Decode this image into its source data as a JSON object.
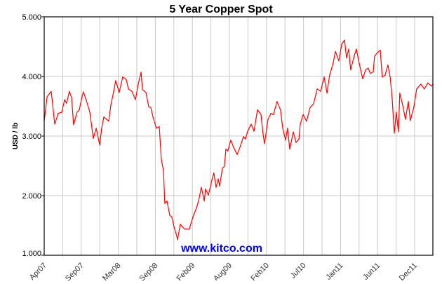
{
  "chart_data": {
    "type": "line",
    "title": "5 Year Copper Spot",
    "xlabel": "",
    "ylabel": "USD / lb",
    "watermark": "www.kitco.com",
    "xlim": [
      "2007-04-01",
      "2012-02-07"
    ],
    "ylim": [
      1,
      5
    ],
    "yticks": [
      "1.000",
      "2.000",
      "3.000",
      "4.000",
      "5.000"
    ],
    "xticks": [
      "Apr07",
      "Sep07",
      "Mar08",
      "Sep08",
      "Feb09",
      "Aug09",
      "Feb10",
      "Jul10",
      "Jan11",
      "Jun11",
      "Dec11"
    ],
    "grid": true,
    "legend": "none",
    "colors": {
      "line": "#ff0000",
      "grid": "#c8c8c8",
      "watermark": "#0000ff"
    },
    "series": [
      {
        "x": [
          "2007-04-01",
          "2007-04-14",
          "2007-05-03",
          "2007-05-19",
          "2007-06-04",
          "2007-06-20",
          "2007-07-03",
          "2007-07-12",
          "2007-07-25",
          "2007-08-04",
          "2007-08-13",
          "2007-08-29",
          "2007-09-08",
          "2007-09-21",
          "2007-09-27",
          "2007-10-10",
          "2007-10-26",
          "2007-11-11",
          "2007-11-24",
          "2007-12-10",
          "2007-12-19",
          "2007-12-29",
          "2008-01-20",
          "2008-01-30",
          "2008-02-12",
          "2008-02-21",
          "2008-03-08",
          "2008-03-24",
          "2008-04-09",
          "2008-04-19",
          "2008-05-05",
          "2008-05-21",
          "2008-06-03",
          "2008-06-16",
          "2008-06-22",
          "2008-07-08",
          "2008-07-21",
          "2008-07-30",
          "2008-08-09",
          "2008-08-25",
          "2008-09-07",
          "2008-09-16",
          "2008-09-26",
          "2008-10-02",
          "2008-10-12",
          "2008-10-25",
          "2008-11-03",
          "2008-11-13",
          "2008-11-26",
          "2008-11-29",
          "2008-12-12",
          "2008-12-31",
          "2009-01-22",
          "2009-02-07",
          "2009-02-23",
          "2009-03-05",
          "2009-03-18",
          "2009-03-31",
          "2009-04-06",
          "2009-04-19",
          "2009-05-05",
          "2009-05-14",
          "2009-05-24",
          "2009-06-03",
          "2009-06-09",
          "2009-06-22",
          "2009-07-01",
          "2009-07-08",
          "2009-07-17",
          "2009-07-30",
          "2009-08-12",
          "2009-08-28",
          "2009-09-10",
          "2009-09-26",
          "2009-10-05",
          "2009-10-15",
          "2009-10-31",
          "2009-11-13",
          "2009-11-29",
          "2009-12-15",
          "2009-12-24",
          "2009-12-31",
          "2010-01-16",
          "2010-01-29",
          "2010-02-10",
          "2010-02-26",
          "2010-03-14",
          "2010-03-24",
          "2010-04-06",
          "2010-04-15",
          "2010-04-25",
          "2010-05-11",
          "2010-05-24",
          "2010-06-06",
          "2010-06-12",
          "2010-06-25",
          "2010-07-11",
          "2010-07-27",
          "2010-08-12",
          "2010-08-28",
          "2010-09-13",
          "2010-09-29",
          "2010-10-12",
          "2010-10-24",
          "2010-11-09",
          "2010-11-19",
          "2010-12-05",
          "2010-12-18",
          "2010-12-31",
          "2011-01-09",
          "2011-01-19",
          "2011-01-28",
          "2011-02-13",
          "2011-02-23",
          "2011-03-08",
          "2011-03-24",
          "2011-04-06",
          "2011-04-18",
          "2011-04-28",
          "2011-05-11",
          "2011-05-17",
          "2011-05-30",
          "2011-06-12",
          "2011-06-21",
          "2011-07-04",
          "2011-07-17",
          "2011-07-27",
          "2011-08-05",
          "2011-08-15",
          "2011-08-24",
          "2011-09-03",
          "2011-09-09",
          "2011-09-22",
          "2011-10-05",
          "2011-10-18",
          "2011-10-27",
          "2011-11-12",
          "2011-11-25",
          "2011-12-14",
          "2011-12-30",
          "2012-01-15",
          "2012-01-31",
          "2012-02-07"
        ],
        "y": [
          3.25,
          3.66,
          3.75,
          3.2,
          3.38,
          3.4,
          3.61,
          3.55,
          3.75,
          3.64,
          3.19,
          3.4,
          3.44,
          3.67,
          3.74,
          3.6,
          3.4,
          2.96,
          3.13,
          2.85,
          3.13,
          3.32,
          3.25,
          3.52,
          3.75,
          3.93,
          3.73,
          3.99,
          3.95,
          3.79,
          3.75,
          3.61,
          3.87,
          4.07,
          3.78,
          3.73,
          3.49,
          3.48,
          3.32,
          3.13,
          3.16,
          2.61,
          2.42,
          1.87,
          1.91,
          1.67,
          1.64,
          1.48,
          1.32,
          1.26,
          1.52,
          1.44,
          1.44,
          1.64,
          1.79,
          1.91,
          2.14,
          1.91,
          2.11,
          2.01,
          2.26,
          2.38,
          2.14,
          2.28,
          2.16,
          2.46,
          2.49,
          2.78,
          2.75,
          2.93,
          2.81,
          2.69,
          2.81,
          2.99,
          2.95,
          3.08,
          3.2,
          3.08,
          3.44,
          3.36,
          3.05,
          2.87,
          3.28,
          3.38,
          3.36,
          3.58,
          3.44,
          3.13,
          2.93,
          3.13,
          2.78,
          3.07,
          2.89,
          2.95,
          3.2,
          3.36,
          3.25,
          3.48,
          3.54,
          3.79,
          3.75,
          3.99,
          3.72,
          4.02,
          4.22,
          4.42,
          4.26,
          4.54,
          4.61,
          4.31,
          4.46,
          4.11,
          4.34,
          4.46,
          4.22,
          3.96,
          4.11,
          4.14,
          4.05,
          4.08,
          4.34,
          4.4,
          4.44,
          3.99,
          4.02,
          4.19,
          3.99,
          3.64,
          3.05,
          3.4,
          3.07,
          3.72,
          3.52,
          3.28,
          3.58,
          3.26,
          3.48,
          3.79,
          3.87,
          3.79,
          3.89,
          3.84,
          3.87
        ]
      }
    ]
  }
}
